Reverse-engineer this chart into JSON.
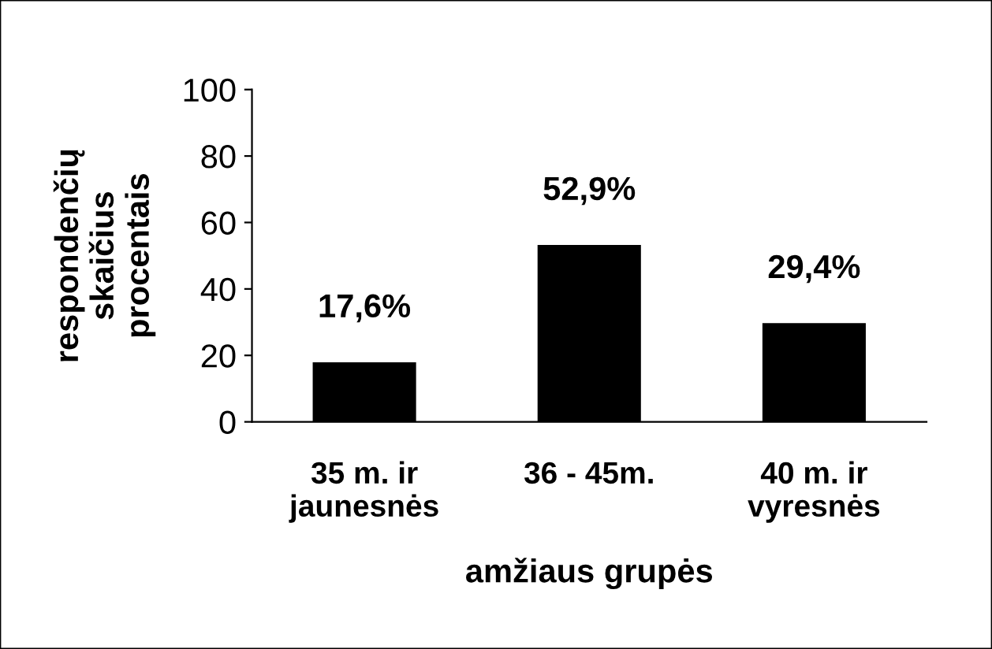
{
  "chart_data": {
    "type": "bar",
    "xlabel": "amžiaus grupės",
    "ylabel": "respondenčių\nskaičius\nprocentais",
    "categories": [
      "35 m. ir\njaunesnės",
      "36 - 45m.",
      "40 m. ir\nvyresnės"
    ],
    "values": [
      17.6,
      52.9,
      29.4
    ],
    "color": "#000000",
    "value_labels": [
      "17,6%",
      "52,9%",
      "29,4%"
    ],
    "ylim": [
      0,
      100
    ],
    "yticks": [
      0,
      20,
      40,
      60,
      80,
      100
    ],
    "grid": false,
    "legend": false
  }
}
